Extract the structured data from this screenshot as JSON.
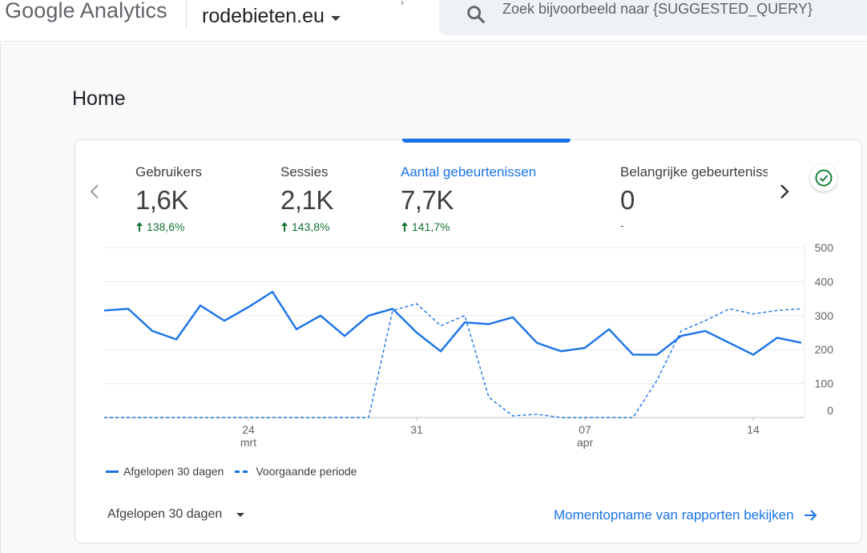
{
  "header": {
    "brand": "Google Analytics",
    "property_name": "rodebieten.eu",
    "search_placeholder": "Zoek bijvoorbeeld naar {SUGGESTED_QUERY}"
  },
  "page": {
    "title": "Home"
  },
  "metrics": [
    {
      "label": "Gebruikers",
      "value": "1,6K",
      "delta": "138,6%"
    },
    {
      "label": "Sessies",
      "value": "2,1K",
      "delta": "143,8%"
    },
    {
      "label": "Aantal gebeurtenissen",
      "value": "7,7K",
      "delta": "141,7%",
      "active": true
    },
    {
      "label": "Belangrijke gebeurtenissen",
      "value": "0",
      "delta": "-"
    }
  ],
  "legend": {
    "current": "Afgelopen 30 dagen",
    "previous": "Voorgaande periode"
  },
  "footer": {
    "range_label": "Afgelopen 30 dagen",
    "link_label": "Momentopname van rapporten bekijken"
  },
  "colors": {
    "accent": "#1a73e8",
    "positive": "#137333",
    "check": "#188038"
  },
  "chart_data": {
    "type": "line",
    "x_ticks": [
      {
        "day": "24",
        "month": "mrt",
        "index": 6
      },
      {
        "day": "31",
        "month": "",
        "index": 13
      },
      {
        "day": "07",
        "month": "apr",
        "index": 20
      },
      {
        "day": "14",
        "month": "",
        "index": 27
      }
    ],
    "y_ticks": [
      0,
      100,
      200,
      300,
      400,
      500
    ],
    "ylim": [
      0,
      500
    ],
    "series": [
      {
        "name": "Afgelopen 30 dagen",
        "style": "solid",
        "values": [
          315,
          320,
          255,
          230,
          330,
          285,
          325,
          370,
          260,
          300,
          240,
          300,
          320,
          250,
          195,
          280,
          275,
          295,
          220,
          195,
          205,
          260,
          185,
          185,
          240,
          255,
          220,
          185,
          235,
          220
        ]
      },
      {
        "name": "Voorgaande periode",
        "style": "dashed",
        "values": [
          0,
          0,
          0,
          0,
          0,
          0,
          0,
          0,
          0,
          0,
          0,
          0,
          315,
          335,
          270,
          300,
          60,
          5,
          10,
          0,
          0,
          0,
          0,
          110,
          255,
          285,
          320,
          305,
          315,
          320
        ]
      }
    ]
  }
}
